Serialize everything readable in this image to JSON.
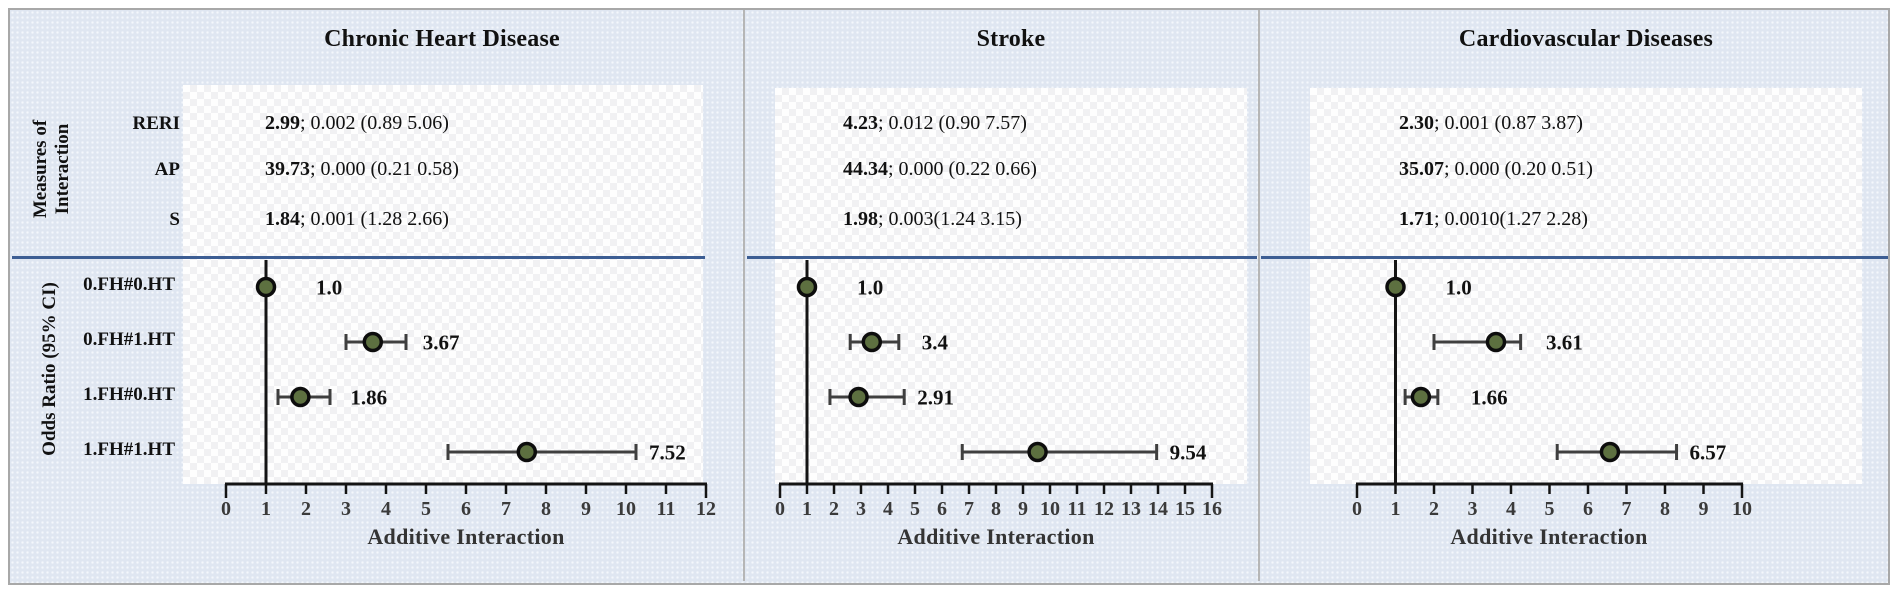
{
  "shared": {
    "measures_axis_label_line1": "Measures of",
    "measures_axis_label_line2": "Interaction",
    "or_axis_label": "Odds Ratio (95% CI)",
    "measure_names": [
      "RERI",
      "AP",
      "S"
    ],
    "row_labels": [
      "0.FH#0.HT",
      "0.FH#1.HT",
      "1.FH#0.HT",
      "1.FH#1.HT"
    ]
  },
  "colors": {
    "background": "#dfe6f1",
    "card": "#fefefe",
    "separator_line": "#3c5d93",
    "divider": "#b6b6b6",
    "axis": "#141414",
    "tick_label": "#3a3a3a",
    "whisker": "#3f3f3f",
    "marker_fill": "#5d7040",
    "marker_stroke": "#0d0d0d"
  },
  "chart_data": [
    {
      "type": "scatter",
      "title": "Chronic Heart Disease",
      "xlabel": "Additive Interaction",
      "xlim": [
        0,
        12
      ],
      "xtick_step": 1,
      "grid": false,
      "reference_line_x": 1,
      "interaction_measures": [
        {
          "name": "RERI",
          "value_bold": "2.99",
          "ci_text": "; 0.002 (0.89 5.06)"
        },
        {
          "name": "AP",
          "value_bold": "39.73",
          "ci_text": "; 0.000 (0.21 0.58)"
        },
        {
          "name": "S",
          "value_bold": "1.84",
          "ci_text": "; 0.001 (1.28 2.66)"
        }
      ],
      "rows": [
        {
          "label": "0.FH#0.HT",
          "odds_ratio": 1.0,
          "ci": null,
          "display": "1.0"
        },
        {
          "label": "0.FH#1.HT",
          "odds_ratio": 3.67,
          "ci": [
            3.0,
            4.5
          ],
          "display": "3.67"
        },
        {
          "label": "1.FH#0.HT",
          "odds_ratio": 1.86,
          "ci": [
            1.3,
            2.6
          ],
          "display": "1.86"
        },
        {
          "label": "1.FH#1.HT",
          "odds_ratio": 7.52,
          "ci": [
            5.55,
            10.25
          ],
          "display": "7.52"
        }
      ]
    },
    {
      "type": "scatter",
      "title": "Stroke",
      "xlabel": "Additive Interaction",
      "xlim": [
        0,
        16
      ],
      "xtick_step": 1,
      "grid": false,
      "reference_line_x": 1,
      "interaction_measures": [
        {
          "name": "RERI",
          "value_bold": "4.23",
          "ci_text": "; 0.012 (0.90 7.57)"
        },
        {
          "name": "AP",
          "value_bold": "44.34",
          "ci_text": "; 0.000 (0.22 0.66)"
        },
        {
          "name": "S",
          "value_bold": "1.98",
          "ci_text": "; 0.003(1.24 3.15)"
        }
      ],
      "rows": [
        {
          "label": "0.FH#0.HT",
          "odds_ratio": 1.0,
          "ci": null,
          "display": "1.0"
        },
        {
          "label": "0.FH#1.HT",
          "odds_ratio": 3.4,
          "ci": [
            2.6,
            4.4
          ],
          "display": "3.4"
        },
        {
          "label": "1.FH#0.HT",
          "odds_ratio": 2.91,
          "ci": [
            1.85,
            4.6
          ],
          "display": "2.91"
        },
        {
          "label": "1.FH#1.HT",
          "odds_ratio": 9.54,
          "ci": [
            6.75,
            13.95
          ],
          "display": "9.54"
        }
      ]
    },
    {
      "type": "scatter",
      "title": "Cardiovascular Diseases",
      "xlabel": "Additive Interaction",
      "xlim": [
        0,
        10
      ],
      "xtick_step": 1,
      "grid": false,
      "reference_line_x": 1,
      "interaction_measures": [
        {
          "name": "RERI",
          "value_bold": "2.30",
          "ci_text": "; 0.001 (0.87 3.87)"
        },
        {
          "name": "AP",
          "value_bold": "35.07",
          "ci_text": "; 0.000 (0.20 0.51)"
        },
        {
          "name": "S",
          "value_bold": "1.71",
          "ci_text": "; 0.0010(1.27 2.28)"
        }
      ],
      "rows": [
        {
          "label": "0.FH#0.HT",
          "odds_ratio": 1.0,
          "ci": null,
          "display": "1.0"
        },
        {
          "label": "0.FH#1.HT",
          "odds_ratio": 3.61,
          "ci": [
            2.0,
            4.25
          ],
          "display": "3.61"
        },
        {
          "label": "1.FH#0.HT",
          "odds_ratio": 1.66,
          "ci": [
            1.25,
            2.1
          ],
          "display": "1.66"
        },
        {
          "label": "1.FH#1.HT",
          "odds_ratio": 6.57,
          "ci": [
            5.2,
            8.3
          ],
          "display": "6.57"
        }
      ]
    }
  ]
}
